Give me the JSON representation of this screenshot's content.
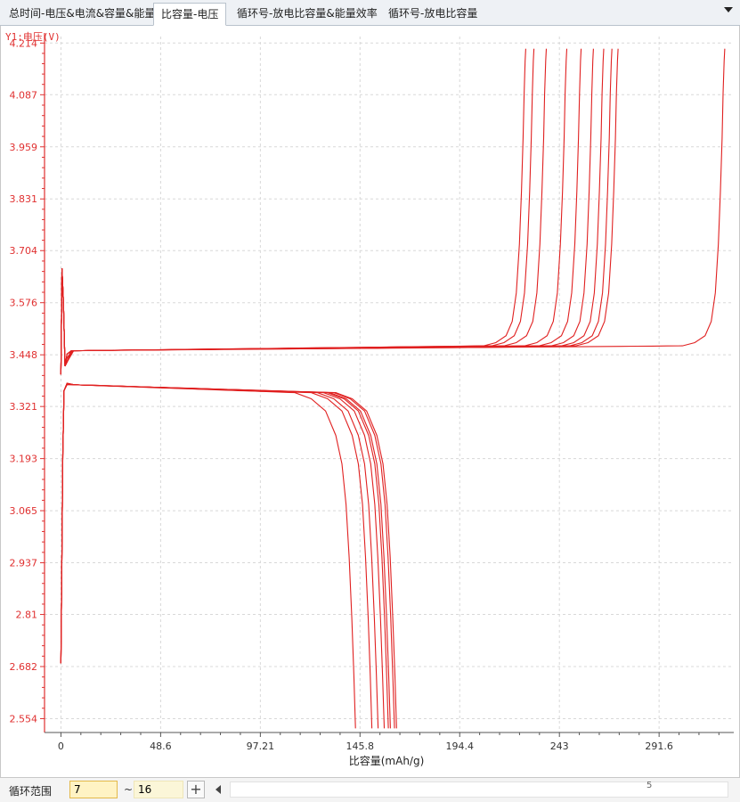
{
  "tabs": [
    {
      "label": "总时间-电压&电流&容量&能量",
      "active": false
    },
    {
      "label": "比容量-电压",
      "active": true
    },
    {
      "label": "循环号-放电比容量&能量效率",
      "active": false
    },
    {
      "label": "循环号-放电比容量",
      "active": false
    }
  ],
  "tab_menu_icon": "chevron-down-icon",
  "bottom": {
    "cycle_range_label": "循环范围",
    "from_value": "7",
    "separator": "~",
    "to_value": "16",
    "add_button_label": "+",
    "slider_value": "5"
  },
  "colors": {
    "curve": "#e02020",
    "y_axis": "#e03030",
    "grid": "#d8d8d8"
  },
  "chart_data": {
    "type": "line",
    "ylabel": "Y1:电压(V)",
    "xlabel": "比容量(mAh/g)",
    "x_ticks": [
      "0",
      "48.6",
      "97.21",
      "145.8",
      "194.4",
      "243",
      "291.6"
    ],
    "y_ticks": [
      "4.214",
      "4.087",
      "3.959",
      "3.831",
      "3.704",
      "3.576",
      "3.448",
      "3.321",
      "3.193",
      "3.065",
      "2.937",
      "2.81",
      "2.682",
      "2.554"
    ],
    "xlim": [
      -8,
      328
    ],
    "ylim": [
      2.52,
      4.23
    ],
    "grid": true,
    "series": [
      {
        "phase": "charge",
        "end_capacity": 226
      },
      {
        "phase": "charge",
        "end_capacity": 230
      },
      {
        "phase": "charge",
        "end_capacity": 236
      },
      {
        "phase": "charge",
        "end_capacity": 246
      },
      {
        "phase": "charge",
        "end_capacity": 253
      },
      {
        "phase": "charge",
        "end_capacity": 259
      },
      {
        "phase": "charge",
        "end_capacity": 264
      },
      {
        "phase": "charge",
        "end_capacity": 268
      },
      {
        "phase": "charge",
        "end_capacity": 271
      },
      {
        "phase": "charge",
        "end_capacity": 323
      },
      {
        "phase": "discharge",
        "end_capacity": 144
      },
      {
        "phase": "discharge",
        "end_capacity": 152
      },
      {
        "phase": "discharge",
        "end_capacity": 155
      },
      {
        "phase": "discharge",
        "end_capacity": 158
      },
      {
        "phase": "discharge",
        "end_capacity": 160
      },
      {
        "phase": "discharge",
        "end_capacity": 161
      },
      {
        "phase": "discharge",
        "end_capacity": 163
      },
      {
        "phase": "discharge",
        "end_capacity": 164
      }
    ]
  }
}
